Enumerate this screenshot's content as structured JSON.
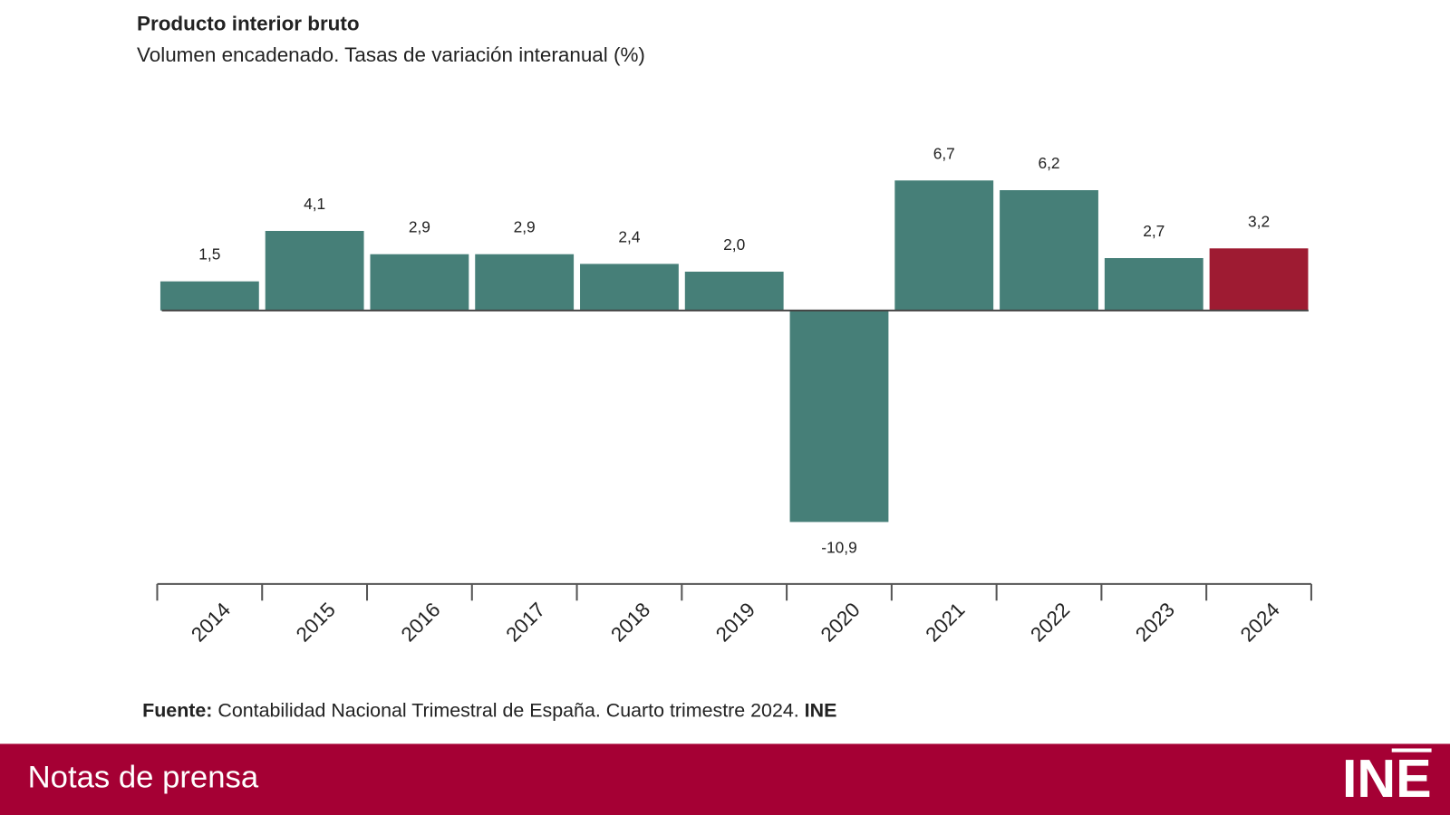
{
  "chart_data": {
    "type": "bar",
    "title": "Producto interior bruto",
    "subtitle": "Volumen encadenado. Tasas de variación interanual (%)",
    "categories": [
      "2014",
      "2015",
      "2016",
      "2017",
      "2018",
      "2019",
      "2020",
      "2021",
      "2022",
      "2023",
      "2024"
    ],
    "values": [
      1.5,
      4.1,
      2.9,
      2.9,
      2.4,
      2.0,
      -10.9,
      6.7,
      6.2,
      2.7,
      3.2
    ],
    "value_labels": [
      "1,5",
      "4,1",
      "2,9",
      "2,9",
      "2,4",
      "2,0",
      "-10,9",
      "6,7",
      "6,2",
      "2,7",
      "3,2"
    ],
    "colors": [
      "#467f78",
      "#467f78",
      "#467f78",
      "#467f78",
      "#467f78",
      "#467f78",
      "#467f78",
      "#467f78",
      "#467f78",
      "#467f78",
      "#9e1b32"
    ],
    "ylim": [
      -12,
      8
    ]
  },
  "source": {
    "label": "Fuente:",
    "text": "Contabilidad Nacional Trimestral de España. Cuarto trimestre 2024.",
    "org": "INE"
  },
  "footer": {
    "title": "Notas de prensa",
    "logo": "INE"
  }
}
